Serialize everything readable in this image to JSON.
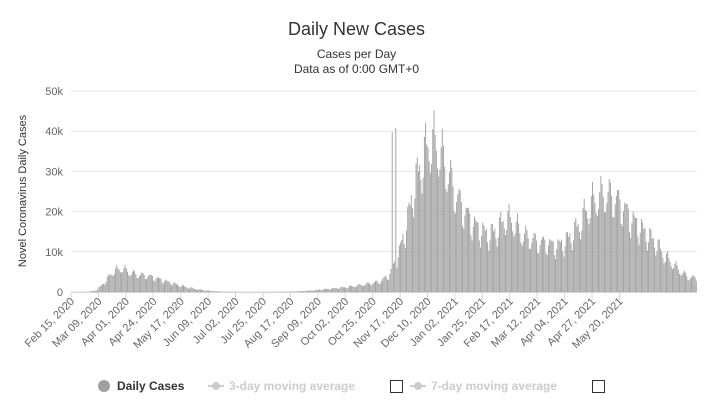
{
  "title": "Daily New Cases",
  "subtitle": "Cases per Day",
  "subtitle2": "Data as of 0:00 GMT+0",
  "colors": {
    "bar": "#a0a0a0",
    "grid": "#e6e6e6",
    "text": "#333333",
    "inactive": "#cccccc"
  },
  "legend": [
    {
      "label": "Daily Cases",
      "active": true
    },
    {
      "label": "3-day moving average",
      "active": false
    },
    {
      "label": "7-day moving average",
      "active": false
    }
  ],
  "chart_data": {
    "type": "bar",
    "title": "Daily New Cases",
    "subtitle": "Cases per Day",
    "ylabel": "Novel Coronavirus Daily Cases",
    "ylim": [
      0,
      50000
    ],
    "yticks": [
      {
        "value": 0,
        "label": "0"
      },
      {
        "value": 10000,
        "label": "10k"
      },
      {
        "value": 20000,
        "label": "20k"
      },
      {
        "value": 30000,
        "label": "30k"
      },
      {
        "value": 40000,
        "label": "40k"
      },
      {
        "value": 50000,
        "label": "50k"
      }
    ],
    "xticks": [
      "Feb 15, 2020",
      "Mar 09, 2020",
      "Apr 01, 2020",
      "Apr 24, 2020",
      "May 17, 2020",
      "Jun 09, 2020",
      "Jul 02, 2020",
      "Jul 25, 2020",
      "Aug 17, 2020",
      "Sep 09, 2020",
      "Oct 02, 2020",
      "Oct 25, 2020",
      "Nov 17, 2020",
      "Dec 10, 2020",
      "Jan 02, 2021",
      "Jan 25, 2021",
      "Feb 17, 2021",
      "Mar 12, 2021",
      "Apr 04, 2021",
      "Apr 27, 2021",
      "May 20, 2021"
    ],
    "x_start": "2020-02-15",
    "tick_interval_days": 23,
    "grid": true,
    "legend_position": "bottom-center",
    "series": [
      {
        "name": "Daily Cases",
        "values_weekly_avg": [
          0,
          0,
          50,
          400,
          2500,
          5000,
          5800,
          4800,
          4200,
          4000,
          3500,
          2800,
          2200,
          1600,
          1100,
          700,
          400,
          200,
          100,
          50,
          30,
          20,
          20,
          20,
          30,
          50,
          80,
          150,
          250,
          400,
          600,
          800,
          1000,
          1200,
          1500,
          1800,
          2200,
          2600,
          4000,
          8000,
          15000,
          25000,
          32000,
          37000,
          35000,
          30000,
          24000,
          20000,
          17000,
          15000,
          14000,
          15000,
          18000,
          17000,
          14000,
          13000,
          12000,
          12000,
          11000,
          12000,
          14000,
          17000,
          21000,
          23000,
          24000,
          23000,
          21000,
          18000,
          16000,
          14000,
          12000,
          9000,
          7000,
          5000,
          3500
        ]
      }
    ]
  }
}
